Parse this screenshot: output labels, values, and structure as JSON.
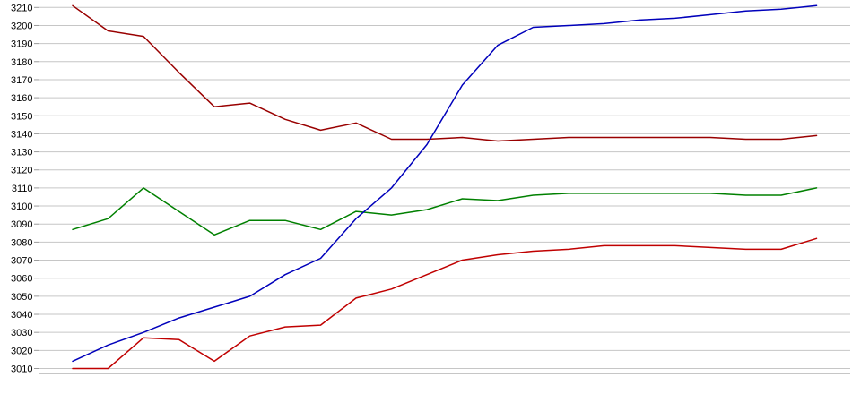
{
  "chart_data": {
    "type": "line",
    "title": "",
    "xlabel": "",
    "ylabel": "",
    "x": [
      1,
      2,
      3,
      4,
      5,
      6,
      7,
      8,
      9,
      10,
      11,
      12,
      13,
      14,
      15,
      16,
      17,
      18,
      19,
      20,
      21,
      22
    ],
    "y_ticks": [
      3210,
      3200,
      3190,
      3180,
      3170,
      3160,
      3150,
      3140,
      3130,
      3120,
      3110,
      3100,
      3090,
      3080,
      3070,
      3060,
      3050,
      3040,
      3030,
      3020,
      3010
    ],
    "ylim": [
      3010,
      3212
    ],
    "grid": "horizontal",
    "legend": "none",
    "series": [
      {
        "name": "series-dark-red",
        "color": "#990000",
        "values": [
          3211,
          3197,
          3194,
          3174,
          3155,
          3157,
          3148,
          3142,
          3146,
          3137,
          3137,
          3138,
          3136,
          3137,
          3138,
          3138,
          3138,
          3138,
          3138,
          3137,
          3137,
          3139
        ]
      },
      {
        "name": "series-green",
        "color": "#008000",
        "values": [
          3087,
          3093,
          3110,
          3097,
          3084,
          3092,
          3092,
          3087,
          3097,
          3095,
          3098,
          3104,
          3103,
          3106,
          3107,
          3107,
          3107,
          3107,
          3107,
          3106,
          3106,
          3110
        ]
      },
      {
        "name": "series-red",
        "color": "#c00000",
        "values": [
          3010,
          3010,
          3027,
          3026,
          3014,
          3028,
          3033,
          3034,
          3049,
          3054,
          3062,
          3070,
          3073,
          3075,
          3076,
          3078,
          3078,
          3078,
          3077,
          3076,
          3076,
          3082
        ]
      },
      {
        "name": "series-blue",
        "color": "#0000bb",
        "values": [
          3014,
          3023,
          3030,
          3038,
          3044,
          3050,
          3062,
          3071,
          3093,
          3110,
          3134,
          3167,
          3189,
          3199,
          3200,
          3201,
          3203,
          3204,
          3206,
          3208,
          3209,
          3211
        ]
      }
    ]
  },
  "colors": {
    "background": "#ffffff",
    "gridline": "#c6c6c6",
    "axis": "#9a9a9a",
    "tick_label": "#000000"
  }
}
